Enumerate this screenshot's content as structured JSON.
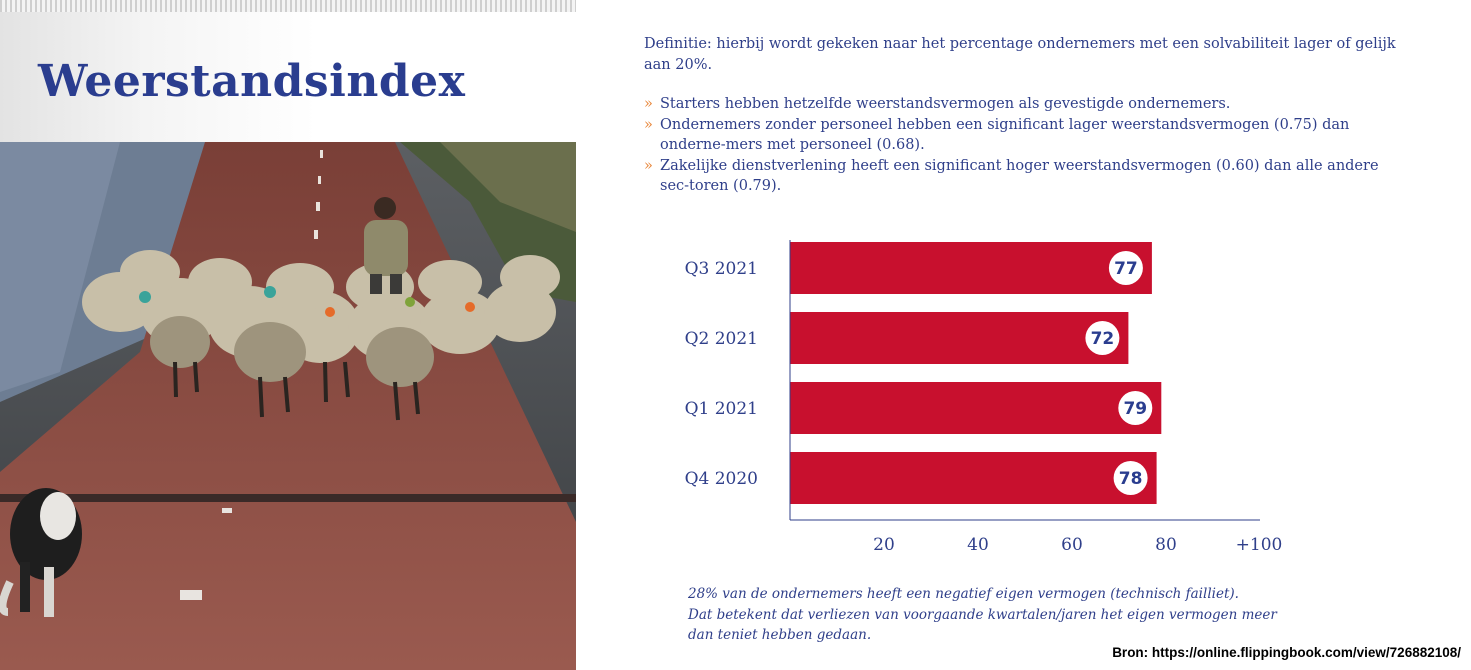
{
  "page": {
    "title": "Weerstandsindex",
    "definition": "Definitie: hierbij wordt gekeken naar het percentage ondernemers met een solvabiliteit lager of gelijk aan 20%.",
    "bullet_marker": "»",
    "bullets": [
      "Starters hebben hetzelfde weerstandsvermogen als gevestigde ondernemers.",
      "Ondernemers zonder personeel hebben een significant lager weerstandsvermogen (0.75) dan onderne-mers met personeel (0.68).",
      "Zakelijke dienstverlening heeft een significant hoger weerstandsvermogen (0.60) dan alle andere sec-toren (0.79)."
    ],
    "footnote_lines": [
      "28% van de ondernemers heeft een negatief eigen vermogen (technisch failliet).",
      "Dat betekent dat verliezen van voorgaande kwartalen/jaren het eigen vermogen meer",
      "dan teniet hebben gedaan."
    ],
    "source": "Bron: https://online.flippingbook.com/view/726882108/"
  },
  "colors": {
    "title": "#2a3d8f",
    "text": "#2f3f8a",
    "bar": "#c8102e",
    "bullet_marker": "#e8863a",
    "value_badge_bg": "#ffffff"
  },
  "chart_data": {
    "type": "bar",
    "orientation": "horizontal",
    "categories": [
      "Q3 2021",
      "Q2 2021",
      "Q1 2021",
      "Q4 2020"
    ],
    "values": [
      77,
      72,
      79,
      78
    ],
    "xlim": [
      0,
      100
    ],
    "ticks": [
      20,
      40,
      60,
      80,
      100
    ],
    "tick_labels": [
      "20",
      "40",
      "60",
      "80",
      "+100"
    ],
    "grid": false,
    "legend": "none"
  }
}
